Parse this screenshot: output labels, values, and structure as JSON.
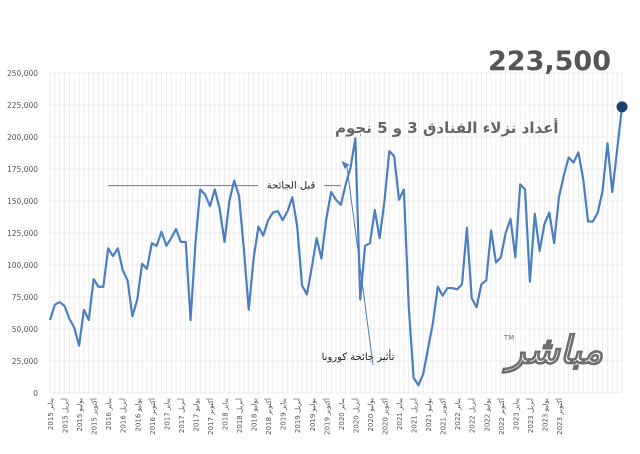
{
  "chart_data": {
    "type": "line",
    "title": "أعداد نزلاء الفنادق 3 و 5 نجوم",
    "headline_value": "223,500",
    "xlabel": "",
    "ylabel": "",
    "ylim": [
      0,
      250000
    ],
    "y_ticks": [
      "0",
      "25,000",
      "50,000",
      "75,000",
      "100,000",
      "125,000",
      "150,000",
      "175,000",
      "200,000",
      "225,000",
      "250,000"
    ],
    "x_tick_labels": [
      "يناير 2015",
      "أبريل 2015",
      "يوليو 2015",
      "أكتوبر 2015",
      "يناير 2016",
      "أبريل 2016",
      "يوليو 2016",
      "أكتوبر 2016",
      "يناير 2017",
      "أبريل 2017",
      "يوليو 2017",
      "أكتوبر 2017",
      "يناير 2018",
      "أبريل 2018",
      "يوليو 2018",
      "أكتوبر 2018",
      "يناير 2019",
      "أبريل 2019",
      "يوليو 2019",
      "أكتوبر 2019",
      "يناير 2020",
      "أبريل 2020",
      "يوليو 2020",
      "أكتوبر 2020",
      "يناير 2021",
      "أبريل 2021",
      "يوليو 2021",
      "أكتوبر 2021",
      "يناير 2022",
      "أبريل 2022",
      "يوليو 2022",
      "أكتوبر 2022",
      "يناير 2023",
      "أبريل 2023",
      "يوليو 2023",
      "أكتوبر 2023"
    ],
    "x_start": "2015-01",
    "x_end": "2023-11",
    "grid": true,
    "series": [
      {
        "name": "",
        "color": "#4a7fc1",
        "values": [
          57000,
          69000,
          71000,
          68000,
          58000,
          51000,
          37000,
          65000,
          57000,
          89000,
          83000,
          83000,
          113000,
          107000,
          113000,
          96000,
          88000,
          60000,
          73000,
          101000,
          97000,
          117000,
          115000,
          126000,
          115000,
          121000,
          128000,
          118000,
          118000,
          57000,
          117000,
          159000,
          155000,
          146000,
          159000,
          144000,
          118000,
          150000,
          166000,
          154000,
          112000,
          65000,
          105000,
          130000,
          123000,
          135000,
          141000,
          142000,
          135000,
          142000,
          153000,
          130000,
          84000,
          77000,
          98000,
          121000,
          105000,
          136000,
          157000,
          151000,
          147000,
          163000,
          176000,
          199000,
          73000,
          115000,
          117000,
          143000,
          121000,
          150000,
          189000,
          185000,
          151000,
          159000,
          68000,
          12000,
          6000,
          15000,
          35000,
          55000,
          83000,
          76000,
          82000,
          82000,
          81000,
          85000,
          129000,
          74000,
          67000,
          85000,
          88000,
          127000,
          102000,
          106000,
          125000,
          136000,
          106000,
          163000,
          159000,
          87000,
          140000,
          111000,
          132000,
          141000,
          117000,
          153000,
          170000,
          184000,
          180000,
          188000,
          167000,
          134000,
          134000,
          141000,
          158000,
          195000,
          157000,
          190000,
          223500
        ]
      }
    ],
    "reference_lines": [
      {
        "label": "قبل الجائحة",
        "y": 162000,
        "x_from": "2016-01",
        "x_to": "2020-01"
      }
    ],
    "annotations": [
      {
        "text": "تأثير جائحة كورونا",
        "target_x": "2020-03"
      }
    ]
  },
  "watermark": {
    "brand": "مباشر",
    "mark": "TM"
  },
  "colors": {
    "line": "#4a7fc1",
    "endpoint": "#1f3f73",
    "grid": "#d9d9d9",
    "axis_text": "#555555",
    "title": "#666666",
    "headline": "#555555"
  }
}
